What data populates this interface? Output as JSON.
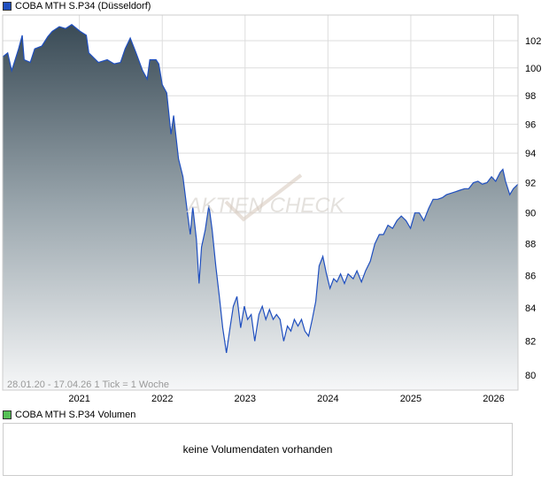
{
  "legend": {
    "price_label": "COBA MTH S.P34 (Düsseldorf)",
    "price_color": "#1f4fbf",
    "volume_label": "COBA MTH S.P34 Volumen",
    "volume_color": "#55c055"
  },
  "volume": {
    "message": "keine Volumendaten vorhanden"
  },
  "watermark": {
    "logo_text": "AKTIEN CHECK"
  },
  "chart_data": {
    "type": "area",
    "info_text": "28.01.20 - 17.04.26   1 Tick = 1 Woche",
    "y_scale": "log",
    "ylim": [
      79.2,
      104
    ],
    "y_ticks": [
      80,
      82,
      84,
      86,
      88,
      90,
      92,
      94,
      96,
      98,
      100,
      102
    ],
    "x_ticks": [
      "2021",
      "2022",
      "2023",
      "2024",
      "2025",
      "2026"
    ],
    "grid": true,
    "series": [
      {
        "dates": [
          "2020-01-28",
          "2020-02-20",
          "2020-03-07",
          "2020-04-07",
          "2020-04-23",
          "2020-05-01",
          "2020-05-28",
          "2020-06-17",
          "2020-07-18",
          "2020-08-14",
          "2020-09-03",
          "2020-10-04",
          "2020-11-01",
          "2020-11-28",
          "2021-01-04",
          "2021-02-01",
          "2021-02-12",
          "2021-03-24",
          "2021-05-02",
          "2021-06-02",
          "2021-06-30",
          "2021-07-20",
          "2021-08-12",
          "2021-09-05",
          "2021-10-06",
          "2021-10-26",
          "2021-11-07",
          "2021-12-04",
          "2021-12-16",
          "2022-01-01",
          "2022-01-21",
          "2022-02-09",
          "2022-02-21",
          "2022-03-12",
          "2022-04-01",
          "2022-04-21",
          "2022-05-03",
          "2022-05-14",
          "2022-05-30",
          "2022-06-11",
          "2022-06-22",
          "2022-07-08",
          "2022-07-24",
          "2022-08-08",
          "2022-08-24",
          "2022-09-09",
          "2022-09-24",
          "2022-10-10",
          "2022-10-26",
          "2022-11-10",
          "2022-11-26",
          "2022-12-12",
          "2022-12-28",
          "2023-01-12",
          "2023-01-28",
          "2023-02-13",
          "2023-03-01",
          "2023-03-16",
          "2023-04-01",
          "2023-04-17",
          "2023-05-03",
          "2023-05-18",
          "2023-06-03",
          "2023-06-19",
          "2023-07-05",
          "2023-07-20",
          "2023-08-05",
          "2023-08-21",
          "2023-09-06",
          "2023-09-21",
          "2023-10-07",
          "2023-10-23",
          "2023-11-08",
          "2023-11-23",
          "2023-12-09",
          "2023-12-25",
          "2024-01-10",
          "2024-01-26",
          "2024-02-10",
          "2024-02-26",
          "2024-03-13",
          "2024-03-29",
          "2024-04-21",
          "2024-05-07",
          "2024-05-27",
          "2024-06-15",
          "2024-07-05",
          "2024-07-25",
          "2024-08-14",
          "2024-09-02",
          "2024-09-22",
          "2024-10-12",
          "2024-11-01",
          "2024-11-20",
          "2024-12-10",
          "2024-12-30",
          "2025-01-19",
          "2025-02-08",
          "2025-02-28",
          "2025-03-19",
          "2025-04-08",
          "2025-04-28",
          "2025-05-18",
          "2025-06-06",
          "2025-06-26",
          "2025-07-16",
          "2025-08-05",
          "2025-08-25",
          "2025-09-13",
          "2025-10-03",
          "2025-10-23",
          "2025-11-12",
          "2025-12-02",
          "2025-12-22",
          "2026-01-10",
          "2026-01-30",
          "2026-02-11",
          "2026-02-23",
          "2026-03-11",
          "2026-03-27",
          "2026-04-17"
        ],
        "values": [
          100.8,
          101.1,
          99.8,
          101.4,
          102.4,
          100.6,
          100.4,
          101.4,
          101.6,
          102.3,
          102.7,
          103.05,
          102.9,
          103.2,
          102.7,
          102.4,
          101.1,
          100.4,
          100.6,
          100.3,
          100.4,
          101.4,
          102.2,
          101.2,
          99.8,
          99.2,
          100.6,
          100.6,
          100.3,
          98.8,
          98.2,
          95.3,
          96.6,
          93.6,
          92.4,
          90.0,
          88.6,
          90.4,
          88.3,
          85.5,
          87.8,
          88.9,
          90.5,
          88.9,
          86.6,
          84.7,
          82.8,
          81.3,
          82.8,
          84.1,
          84.7,
          82.8,
          84.1,
          83.3,
          83.6,
          82.0,
          83.6,
          84.1,
          83.3,
          83.9,
          83.3,
          83.6,
          83.3,
          82.0,
          82.9,
          82.6,
          83.3,
          82.9,
          83.3,
          82.6,
          82.3,
          83.3,
          84.4,
          86.6,
          87.2,
          86.1,
          85.2,
          85.8,
          85.6,
          86.1,
          85.5,
          86.1,
          85.8,
          86.3,
          85.6,
          86.3,
          86.9,
          88.0,
          88.6,
          88.6,
          89.2,
          89.0,
          89.5,
          89.8,
          89.5,
          89.0,
          90.0,
          90.0,
          89.5,
          90.3,
          90.9,
          90.9,
          91.0,
          91.2,
          91.3,
          91.4,
          91.5,
          91.6,
          91.6,
          92.0,
          92.1,
          91.9,
          92.0,
          92.4,
          92.1,
          92.7,
          92.9,
          92.1,
          91.2,
          91.6,
          91.9
        ]
      }
    ]
  }
}
